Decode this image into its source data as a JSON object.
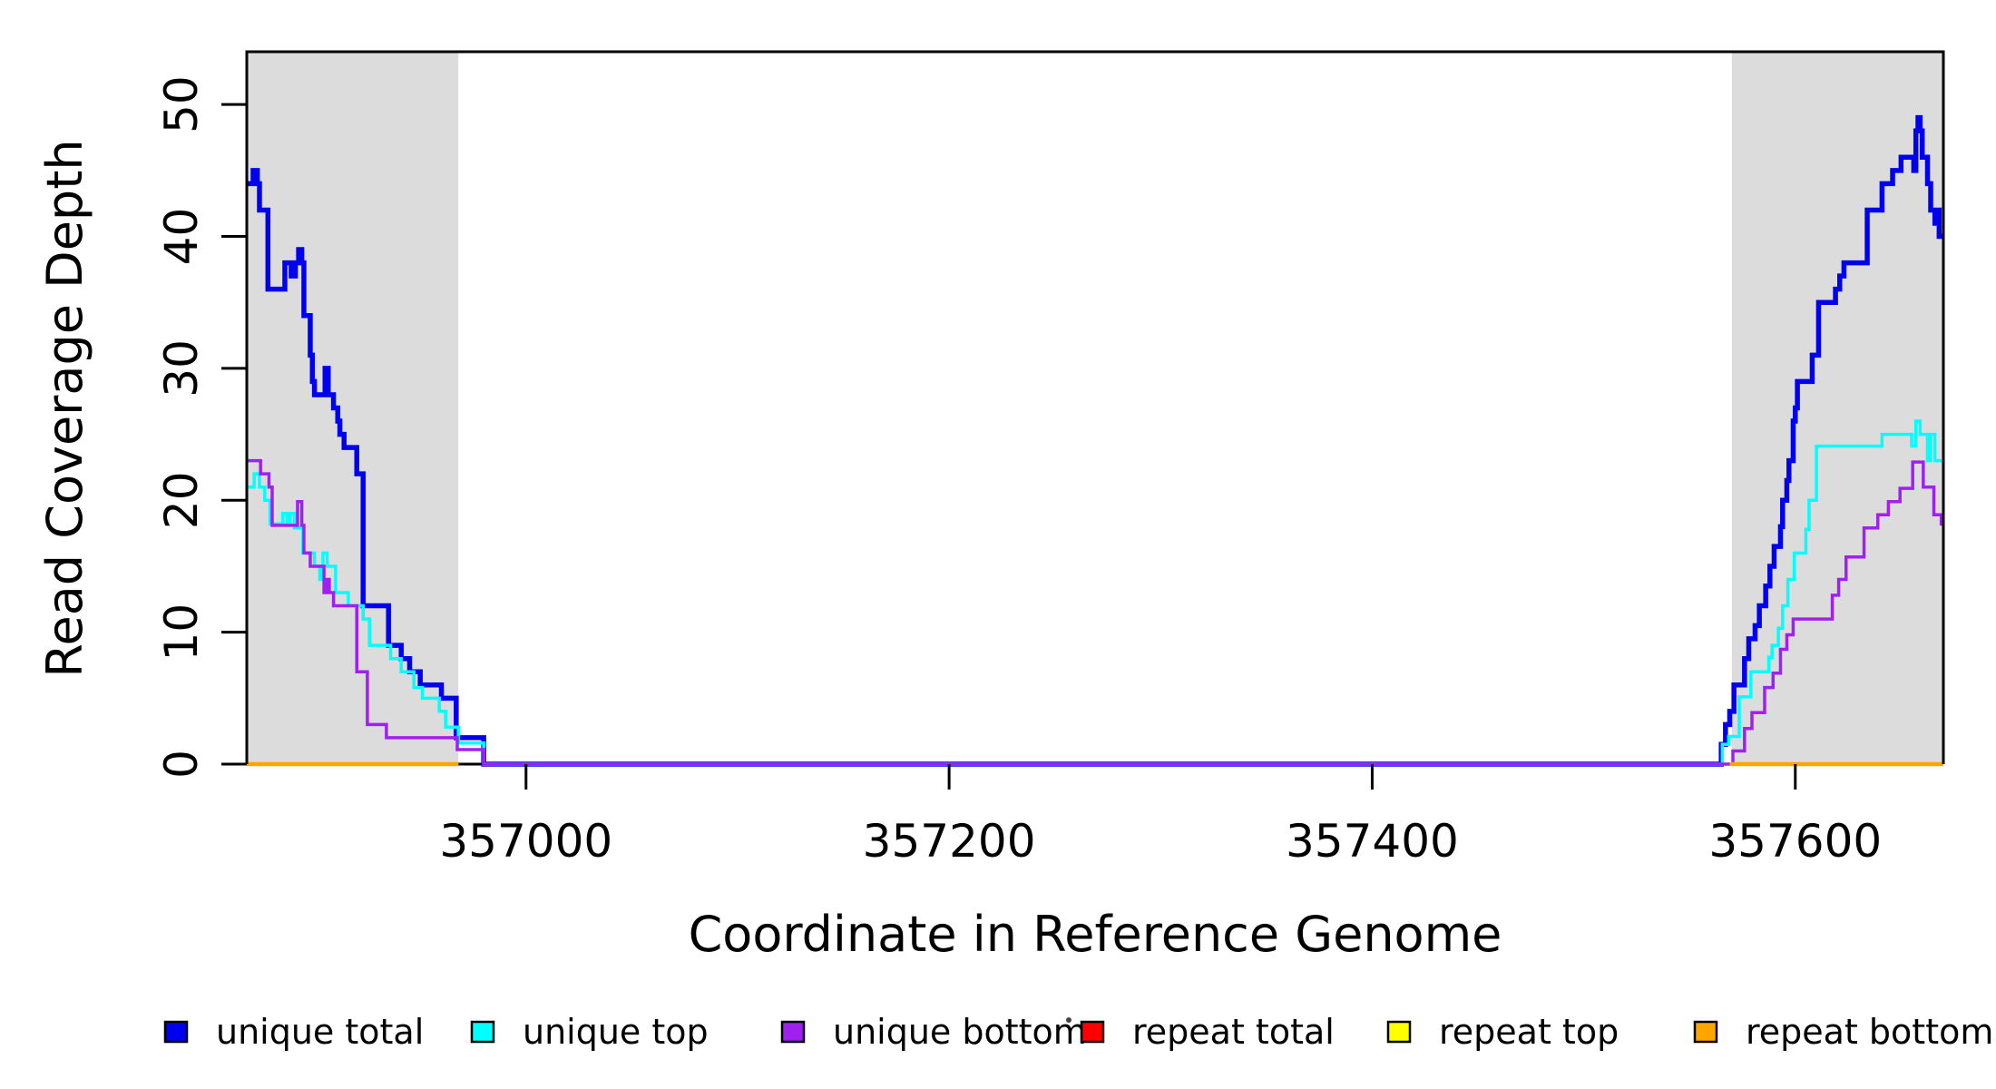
{
  "chart_data": {
    "type": "line",
    "subtype": "step",
    "title": "",
    "xlabel": "Coordinate in Reference Genome",
    "ylabel": "Read Coverage Depth",
    "xlim": [
      356868,
      357670
    ],
    "ylim": [
      0,
      54
    ],
    "grid": false,
    "legend_position": "bottom",
    "x_ticks": [
      {
        "value": 357000,
        "label": "357000"
      },
      {
        "value": 357200,
        "label": "357200"
      },
      {
        "value": 357400,
        "label": "357400"
      },
      {
        "value": 357600,
        "label": "357600"
      }
    ],
    "y_ticks": [
      {
        "value": 0,
        "label": "0"
      },
      {
        "value": 10,
        "label": "10"
      },
      {
        "value": 20,
        "label": "20"
      },
      {
        "value": 30,
        "label": "30"
      },
      {
        "value": 40,
        "label": "40"
      },
      {
        "value": 50,
        "label": "50"
      }
    ],
    "highlight_regions": [
      {
        "name": "left repeat region",
        "x0": 356868,
        "x1": 356968,
        "color": "#DCDCDC"
      },
      {
        "name": "right repeat region",
        "x0": 357570,
        "x1": 357670,
        "color": "#DCDCDC"
      }
    ],
    "series": [
      {
        "name": "unique total",
        "color": "#0000EE",
        "width": 5.5,
        "extend_to_end": true,
        "points": [
          [
            356868,
            44
          ],
          [
            356871,
            45
          ],
          [
            356873,
            44
          ],
          [
            356874,
            42
          ],
          [
            356878,
            36
          ],
          [
            356886,
            38
          ],
          [
            356889,
            37
          ],
          [
            356891,
            38
          ],
          [
            356892.5,
            39
          ],
          [
            356894,
            38
          ],
          [
            356895,
            34
          ],
          [
            356898,
            31
          ],
          [
            356899,
            29
          ],
          [
            356900,
            28
          ],
          [
            356905,
            30
          ],
          [
            356906.5,
            28
          ],
          [
            356909,
            27
          ],
          [
            356911,
            26
          ],
          [
            356912,
            25
          ],
          [
            356914,
            24
          ],
          [
            356920,
            22
          ],
          [
            356923,
            12
          ],
          [
            356935,
            9
          ],
          [
            356941,
            8
          ],
          [
            356945,
            7
          ],
          [
            356950,
            6
          ],
          [
            356960,
            5
          ],
          [
            356967,
            2
          ],
          [
            356980,
            0
          ],
          [
            357565,
            1.5
          ],
          [
            357567,
            3
          ],
          [
            357569,
            4
          ],
          [
            357571,
            6
          ],
          [
            357576,
            8
          ],
          [
            357578,
            9.5
          ],
          [
            357581,
            10.5
          ],
          [
            357583,
            12
          ],
          [
            357586,
            13.5
          ],
          [
            357588,
            15
          ],
          [
            357590,
            16.5
          ],
          [
            357593,
            18
          ],
          [
            357594,
            20
          ],
          [
            357596,
            21.5
          ],
          [
            357597,
            23
          ],
          [
            357599,
            26
          ],
          [
            357600,
            27
          ],
          [
            357601,
            29
          ],
          [
            357608,
            31
          ],
          [
            357611,
            35
          ],
          [
            357619,
            36
          ],
          [
            357621,
            37
          ],
          [
            357623,
            38
          ],
          [
            357634,
            42
          ],
          [
            357641,
            44
          ],
          [
            357646,
            45
          ],
          [
            357650,
            46
          ],
          [
            357656,
            45
          ],
          [
            357657,
            48
          ],
          [
            357658,
            49
          ],
          [
            357659,
            48
          ],
          [
            357660,
            46
          ],
          [
            357662.5,
            44
          ],
          [
            357664,
            42
          ],
          [
            357666,
            41
          ],
          [
            357667,
            42
          ],
          [
            357668,
            40
          ]
        ]
      },
      {
        "name": "unique top",
        "color": "#00FFFF",
        "width": 3.5,
        "extend_to_end": true,
        "points": [
          [
            356868,
            21
          ],
          [
            356871.5,
            22
          ],
          [
            356874,
            21
          ],
          [
            356876.5,
            20
          ],
          [
            356879,
            18.2
          ],
          [
            356885,
            19
          ],
          [
            356887,
            18.3
          ],
          [
            356888.5,
            19
          ],
          [
            356890.5,
            17.9
          ],
          [
            356894.5,
            16
          ],
          [
            356900,
            15
          ],
          [
            356902.5,
            14
          ],
          [
            356904,
            16
          ],
          [
            356906,
            15
          ],
          [
            356910,
            13
          ],
          [
            356916,
            12
          ],
          [
            356923,
            11
          ],
          [
            356926,
            9
          ],
          [
            356936,
            8
          ],
          [
            356941,
            7
          ],
          [
            356947,
            5.8
          ],
          [
            356951,
            5
          ],
          [
            356959,
            4
          ],
          [
            356962,
            2.8
          ],
          [
            356968,
            1.6
          ],
          [
            356980,
            0
          ],
          [
            357565.5,
            1.5
          ],
          [
            357568.5,
            2.1
          ],
          [
            357573.5,
            5.1
          ],
          [
            357579,
            7
          ],
          [
            357587.5,
            8.1
          ],
          [
            357589,
            9
          ],
          [
            357592,
            10.3
          ],
          [
            357594,
            12
          ],
          [
            357596.5,
            14
          ],
          [
            357599.5,
            16
          ],
          [
            357605,
            17.8
          ],
          [
            357606.5,
            20
          ],
          [
            357610,
            24.1
          ],
          [
            357641,
            25
          ],
          [
            357655,
            24.1
          ],
          [
            357657,
            26
          ],
          [
            357659,
            25
          ],
          [
            357662.5,
            23
          ],
          [
            357664,
            25
          ],
          [
            357666,
            23
          ]
        ]
      },
      {
        "name": "unique bottom",
        "color": "#A020F0",
        "width": 3.5,
        "extend_to_end": true,
        "points": [
          [
            356868,
            23
          ],
          [
            356874.5,
            22
          ],
          [
            356878.5,
            21
          ],
          [
            356880,
            18.1
          ],
          [
            356892,
            19.9
          ],
          [
            356894,
            18.1
          ],
          [
            356895,
            16
          ],
          [
            356898,
            15
          ],
          [
            356904.5,
            13
          ],
          [
            356905.5,
            14
          ],
          [
            356907,
            13
          ],
          [
            356909,
            12
          ],
          [
            356920,
            7
          ],
          [
            356925,
            3
          ],
          [
            356934,
            2
          ],
          [
            356967.5,
            1.1
          ],
          [
            356980,
            0
          ],
          [
            357570.5,
            1
          ],
          [
            357576,
            2.7
          ],
          [
            357579.5,
            3.9
          ],
          [
            357585.5,
            5.8
          ],
          [
            357589.5,
            6.9
          ],
          [
            357593,
            8.7
          ],
          [
            357596,
            9.8
          ],
          [
            357599,
            11
          ],
          [
            357617.5,
            12.8
          ],
          [
            357620.5,
            14
          ],
          [
            357624,
            15.7
          ],
          [
            357632.5,
            17.9
          ],
          [
            357639,
            18.9
          ],
          [
            357644,
            19.9
          ],
          [
            357649.5,
            20.9
          ],
          [
            357655.5,
            22.9
          ],
          [
            357660.5,
            21
          ],
          [
            357665.5,
            18.9
          ],
          [
            357669,
            18.2
          ]
        ]
      },
      {
        "name": "repeat total",
        "color": "#FF0000",
        "width": 4,
        "extend_to_end": false,
        "segments": [
          [
            [
              356868,
              0
            ],
            [
              356968,
              0
            ]
          ],
          [
            [
              357569,
              0
            ],
            [
              357670,
              0
            ]
          ]
        ]
      },
      {
        "name": "repeat top",
        "color": "#FFFF00",
        "width": 4,
        "extend_to_end": false,
        "segments": [
          [
            [
              356868,
              0
            ],
            [
              356968,
              0
            ]
          ],
          [
            [
              357569,
              0
            ],
            [
              357670,
              0
            ]
          ]
        ]
      },
      {
        "name": "repeat bottom",
        "color": "#FFA500",
        "width": 4.5,
        "extend_to_end": false,
        "segments": [
          [
            [
              356868,
              0
            ],
            [
              356968,
              0
            ]
          ],
          [
            [
              357569,
              0
            ],
            [
              357670,
              0
            ]
          ]
        ]
      }
    ]
  }
}
